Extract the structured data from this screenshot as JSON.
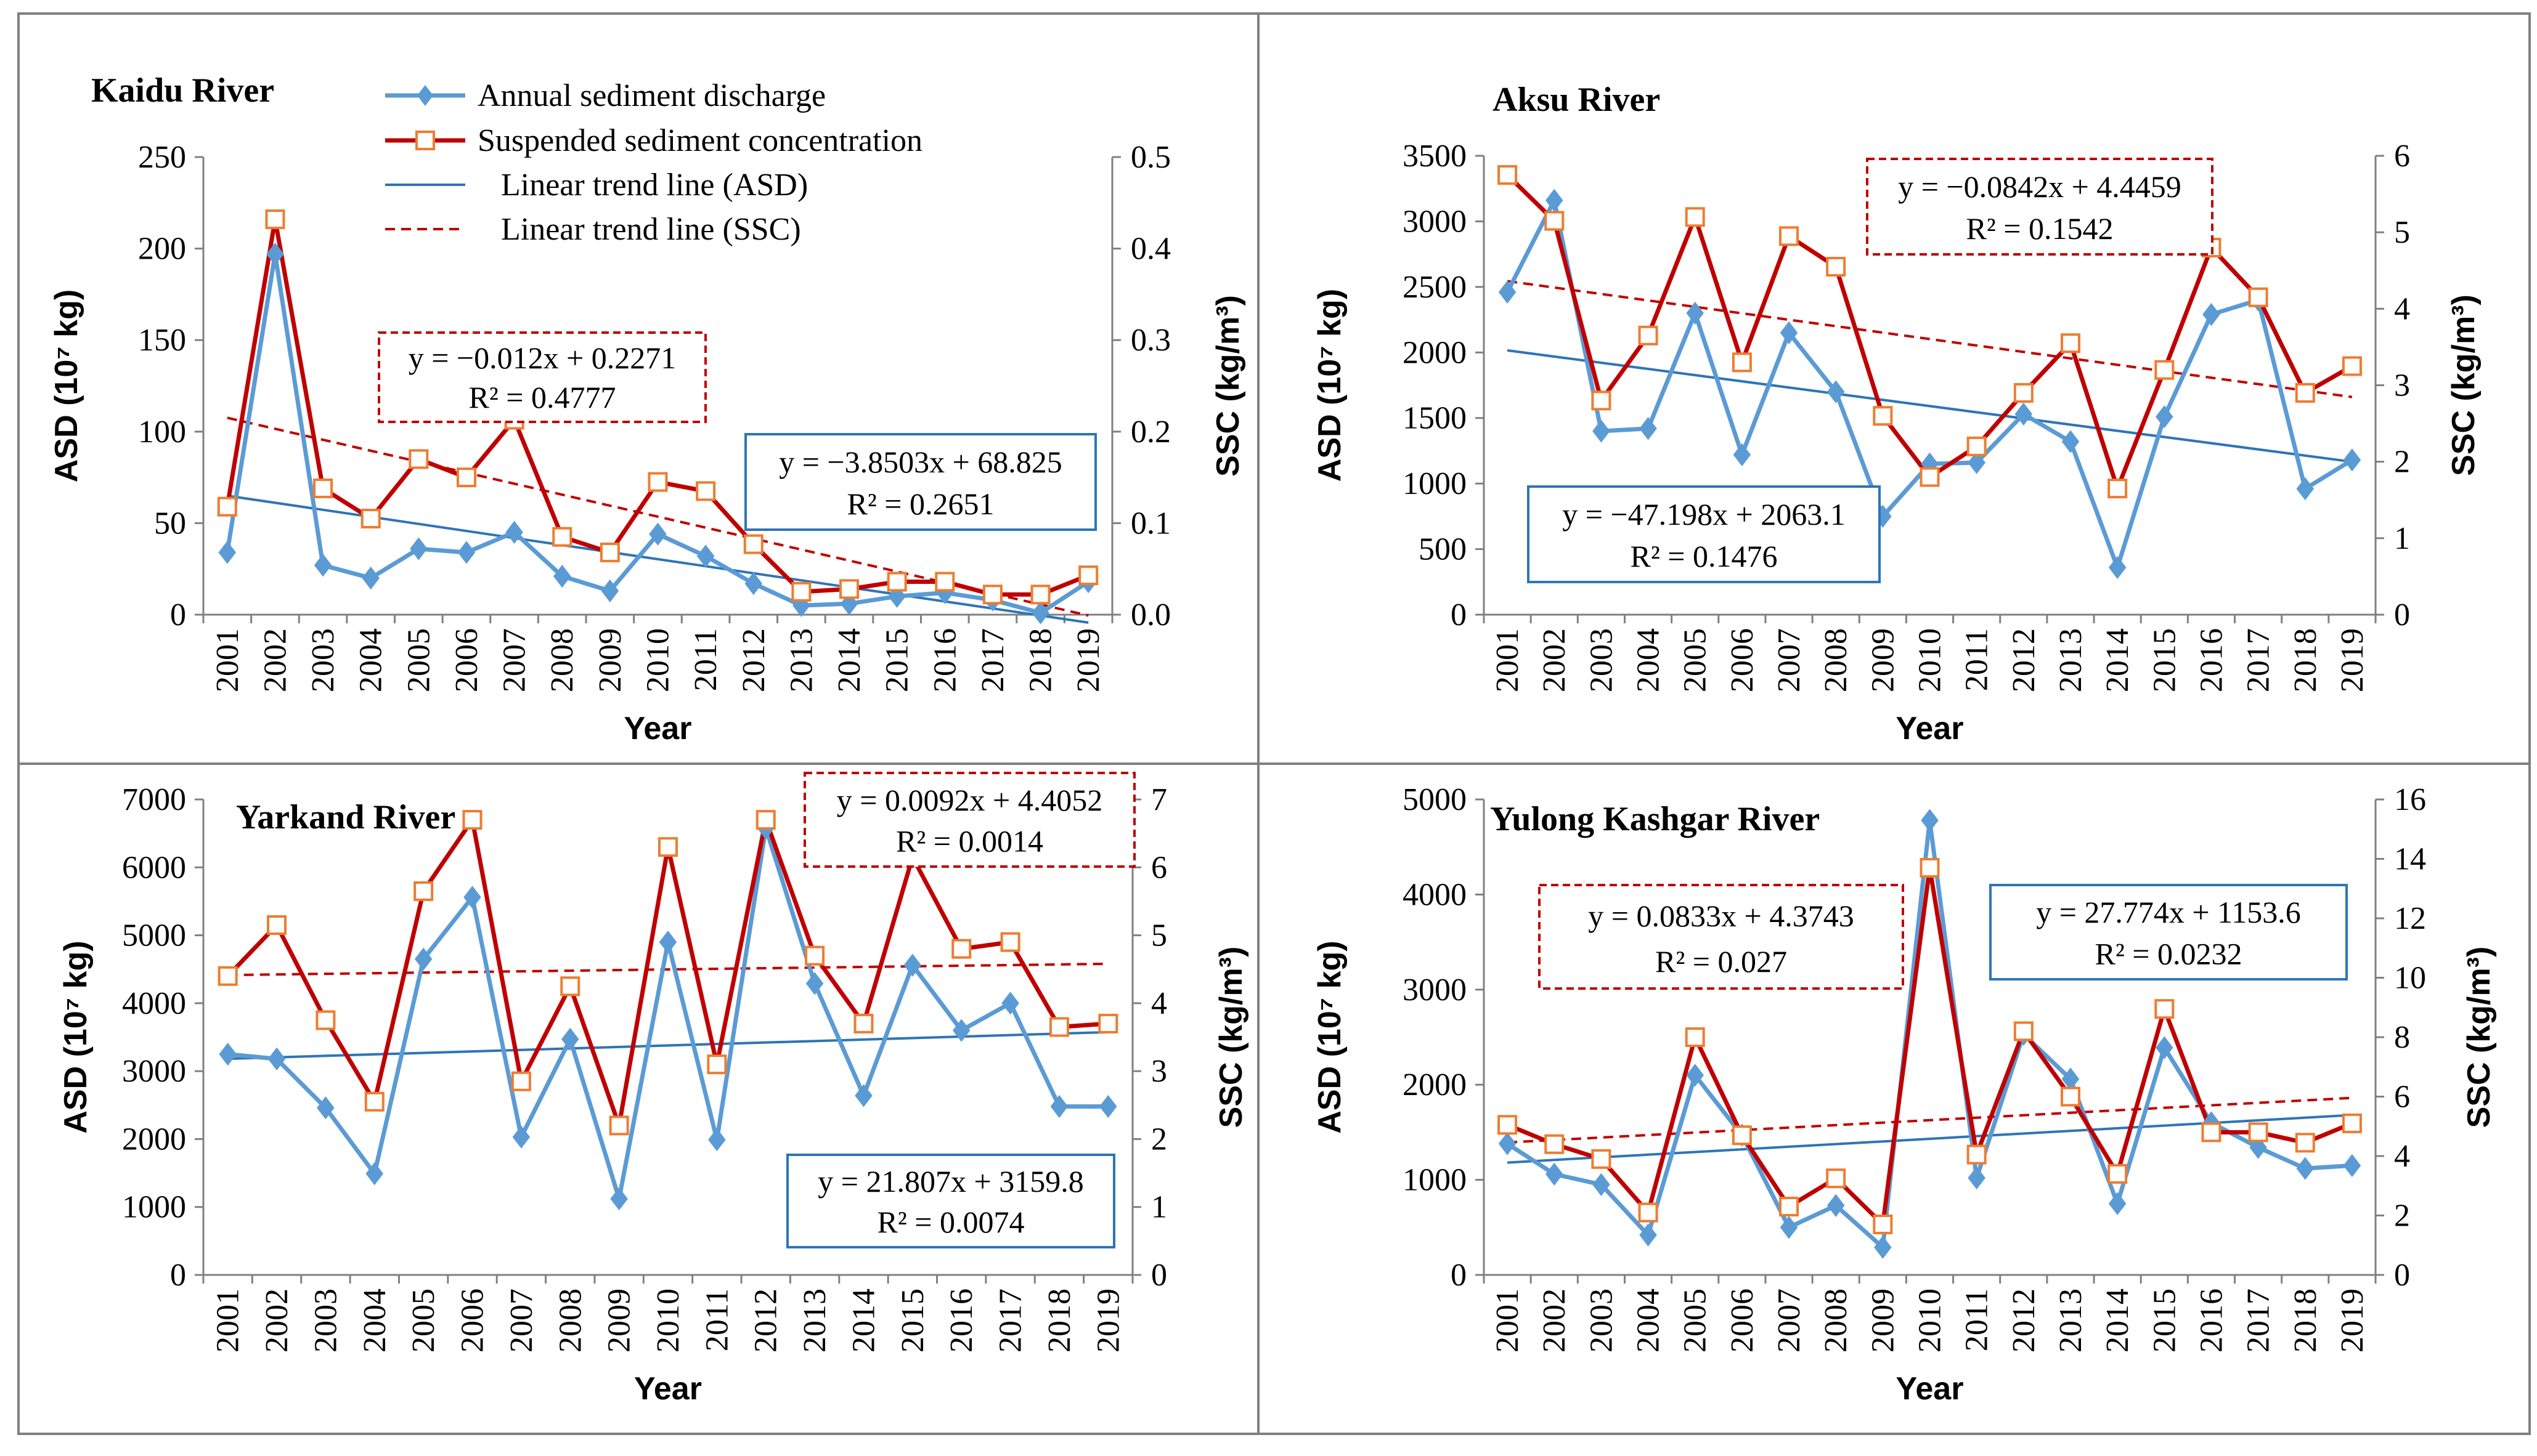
{
  "legend": {
    "asd": "Annual sediment discharge",
    "ssc": "Suspended sediment concentration",
    "trend_asd": "Linear trend line (ASD)",
    "trend_ssc": "Linear trend line (SSC)"
  },
  "colors": {
    "asd": "#5b9bd5",
    "ssc": "#c00000",
    "ssc_marker": "#ed7d31",
    "trend_asd": "#2e75b6",
    "trend_ssc": "#c00000",
    "frame": "#808080"
  },
  "chart_data": [
    {
      "type": "line",
      "title": "Kaidu River",
      "xlabel": "Year",
      "ylabel": "ASD (10⁷ kg)",
      "y2label": "SSC (kg/m³)",
      "x": [
        "2001",
        "2002",
        "2003",
        "2004",
        "2005",
        "2006",
        "2007",
        "2008",
        "2009",
        "2010",
        "2011",
        "2012",
        "2013",
        "2014",
        "2015",
        "2016",
        "2017",
        "2018",
        "2019"
      ],
      "ylim": [
        0,
        250
      ],
      "yticks": [
        "0",
        "50",
        "100",
        "150",
        "200",
        "250"
      ],
      "y2lim": [
        0,
        0.5
      ],
      "y2ticks": [
        "0.0",
        "0.1",
        "0.2",
        "0.3",
        "0.4",
        "0.5"
      ],
      "legend": true,
      "series": [
        {
          "name": "Annual sediment discharge",
          "axis": "left",
          "values": [
            34,
            197,
            27,
            20,
            36,
            34,
            45,
            21,
            13,
            44,
            32,
            17,
            5,
            6,
            10,
            12,
            8,
            1,
            18
          ]
        },
        {
          "name": "Suspended sediment concentration",
          "axis": "right",
          "values": [
            0.118,
            0.432,
            0.138,
            0.105,
            0.17,
            0.15,
            0.213,
            0.085,
            0.068,
            0.145,
            0.135,
            0.077,
            0.025,
            0.028,
            0.036,
            0.036,
            0.022,
            0.022,
            0.043
          ]
        }
      ],
      "trends": [
        {
          "name": "Linear trend line (ASD)",
          "axis": "left",
          "slope": -3.8503,
          "intercept": 68.825,
          "equation": "y = −3.8503x + 68.825",
          "r2": "R² = 0.2651"
        },
        {
          "name": "Linear trend line (SSC)",
          "axis": "right",
          "slope": -0.012,
          "intercept": 0.2271,
          "equation": "y = −0.012x + 0.2271",
          "r2": "R² = 0.4777"
        }
      ]
    },
    {
      "type": "line",
      "title": "Aksu River",
      "xlabel": "Year",
      "ylabel": "ASD (10⁷ kg)",
      "y2label": "SSC (kg/m³)",
      "x": [
        "2001",
        "2002",
        "2003",
        "2004",
        "2005",
        "2006",
        "2007",
        "2008",
        "2009",
        "2010",
        "2011",
        "2012",
        "2013",
        "2014",
        "2015",
        "2016",
        "2017",
        "2018",
        "2019"
      ],
      "ylim": [
        0,
        3500
      ],
      "yticks": [
        "0",
        "500",
        "1000",
        "1500",
        "2000",
        "2500",
        "3000",
        "3500"
      ],
      "y2lim": [
        0,
        6
      ],
      "y2ticks": [
        "0",
        "1",
        "2",
        "3",
        "4",
        "5",
        "6"
      ],
      "legend": false,
      "series": [
        {
          "name": "Annual sediment discharge",
          "axis": "left",
          "values": [
            2460,
            3160,
            1400,
            1420,
            2300,
            1220,
            2150,
            1700,
            750,
            1150,
            1160,
            1530,
            1320,
            360,
            1510,
            2290,
            2400,
            960,
            1180
          ]
        },
        {
          "name": "Suspended sediment concentration",
          "axis": "right",
          "values": [
            5.75,
            5.15,
            2.8,
            3.65,
            5.2,
            3.3,
            4.95,
            4.55,
            2.6,
            1.8,
            2.2,
            2.9,
            3.55,
            1.65,
            3.2,
            4.8,
            4.15,
            2.9,
            3.25
          ]
        }
      ],
      "trends": [
        {
          "name": "Linear trend line (ASD)",
          "axis": "left",
          "slope": -47.198,
          "intercept": 2063.1,
          "equation": "y = −47.198x + 2063.1",
          "r2": "R² = 0.1476"
        },
        {
          "name": "Linear trend line (SSC)",
          "axis": "right",
          "slope": -0.0842,
          "intercept": 4.4459,
          "equation": "y = −0.0842x + 4.4459",
          "r2": "R² = 0.1542"
        }
      ]
    },
    {
      "type": "line",
      "title": "Yarkand River",
      "xlabel": "Year",
      "ylabel": "ASD (10⁷ kg)",
      "y2label": "SSC (kg/m³)",
      "x": [
        "2001",
        "2002",
        "2003",
        "2004",
        "2005",
        "2006",
        "2007",
        "2008",
        "2009",
        "2010",
        "2011",
        "2012",
        "2013",
        "2014",
        "2015",
        "2016",
        "2017",
        "2018",
        "2019"
      ],
      "ylim": [
        0,
        7000
      ],
      "yticks": [
        "0",
        "1000",
        "2000",
        "3000",
        "4000",
        "5000",
        "6000",
        "7000"
      ],
      "y2lim": [
        0,
        7
      ],
      "y2ticks": [
        "0",
        "1",
        "2",
        "3",
        "4",
        "5",
        "6",
        "7"
      ],
      "legend": false,
      "series": [
        {
          "name": "Annual sediment discharge",
          "axis": "left",
          "values": [
            3250,
            3180,
            2460,
            1490,
            4650,
            5560,
            2030,
            3470,
            1120,
            4900,
            1990,
            6580,
            4290,
            2640,
            4560,
            3600,
            4000,
            2480,
            2480
          ]
        },
        {
          "name": "Suspended sediment concentration",
          "axis": "right",
          "values": [
            4.4,
            5.15,
            3.75,
            2.55,
            5.65,
            6.7,
            2.85,
            4.25,
            2.2,
            6.3,
            3.1,
            6.7,
            4.7,
            3.7,
            6.15,
            4.8,
            4.9,
            3.65,
            3.7
          ]
        }
      ],
      "trends": [
        {
          "name": "Linear trend line (ASD)",
          "axis": "left",
          "slope": 21.807,
          "intercept": 3159.8,
          "equation": "y = 21.807x + 3159.8",
          "r2": "R² = 0.0074"
        },
        {
          "name": "Linear trend line (SSC)",
          "axis": "right",
          "slope": 0.0092,
          "intercept": 4.4052,
          "equation": "y = 0.0092x + 4.4052",
          "r2": "R² = 0.0014"
        }
      ]
    },
    {
      "type": "line",
      "title": "Yulong Kashgar River",
      "xlabel": "Year",
      "ylabel": "ASD (10⁷ kg)",
      "y2label": "SSC (kg/m³)",
      "x": [
        "2001",
        "2002",
        "2003",
        "2004",
        "2005",
        "2006",
        "2007",
        "2008",
        "2009",
        "2010",
        "2011",
        "2012",
        "2013",
        "2014",
        "2015",
        "2016",
        "2017",
        "2018",
        "2019"
      ],
      "ylim": [
        0,
        5000
      ],
      "yticks": [
        "0",
        "1000",
        "2000",
        "3000",
        "4000",
        "5000"
      ],
      "y2lim": [
        0,
        16
      ],
      "y2ticks": [
        "0",
        "2",
        "4",
        "6",
        "8",
        "10",
        "12",
        "14",
        "16"
      ],
      "legend": false,
      "series": [
        {
          "name": "Annual sediment discharge",
          "axis": "left",
          "values": [
            1380,
            1060,
            950,
            420,
            2100,
            1470,
            500,
            730,
            290,
            4780,
            1020,
            2530,
            2060,
            750,
            2390,
            1600,
            1340,
            1120,
            1150
          ]
        },
        {
          "name": "Suspended sediment concentration",
          "axis": "right",
          "values": [
            5.05,
            4.4,
            3.9,
            2.1,
            8.0,
            4.7,
            2.3,
            3.25,
            1.7,
            13.7,
            4.05,
            8.2,
            6.0,
            3.4,
            8.95,
            4.8,
            4.8,
            4.45,
            5.1
          ]
        }
      ],
      "trends": [
        {
          "name": "Linear trend line (ASD)",
          "axis": "left",
          "slope": 27.774,
          "intercept": 1153.6,
          "equation": "y = 27.774x + 1153.6",
          "r2": "R² = 0.0232"
        },
        {
          "name": "Linear trend line (SSC)",
          "axis": "right",
          "slope": 0.0833,
          "intercept": 4.3743,
          "equation": "y = 0.0833x + 4.3743",
          "r2": "R² = 0.027"
        }
      ]
    }
  ]
}
